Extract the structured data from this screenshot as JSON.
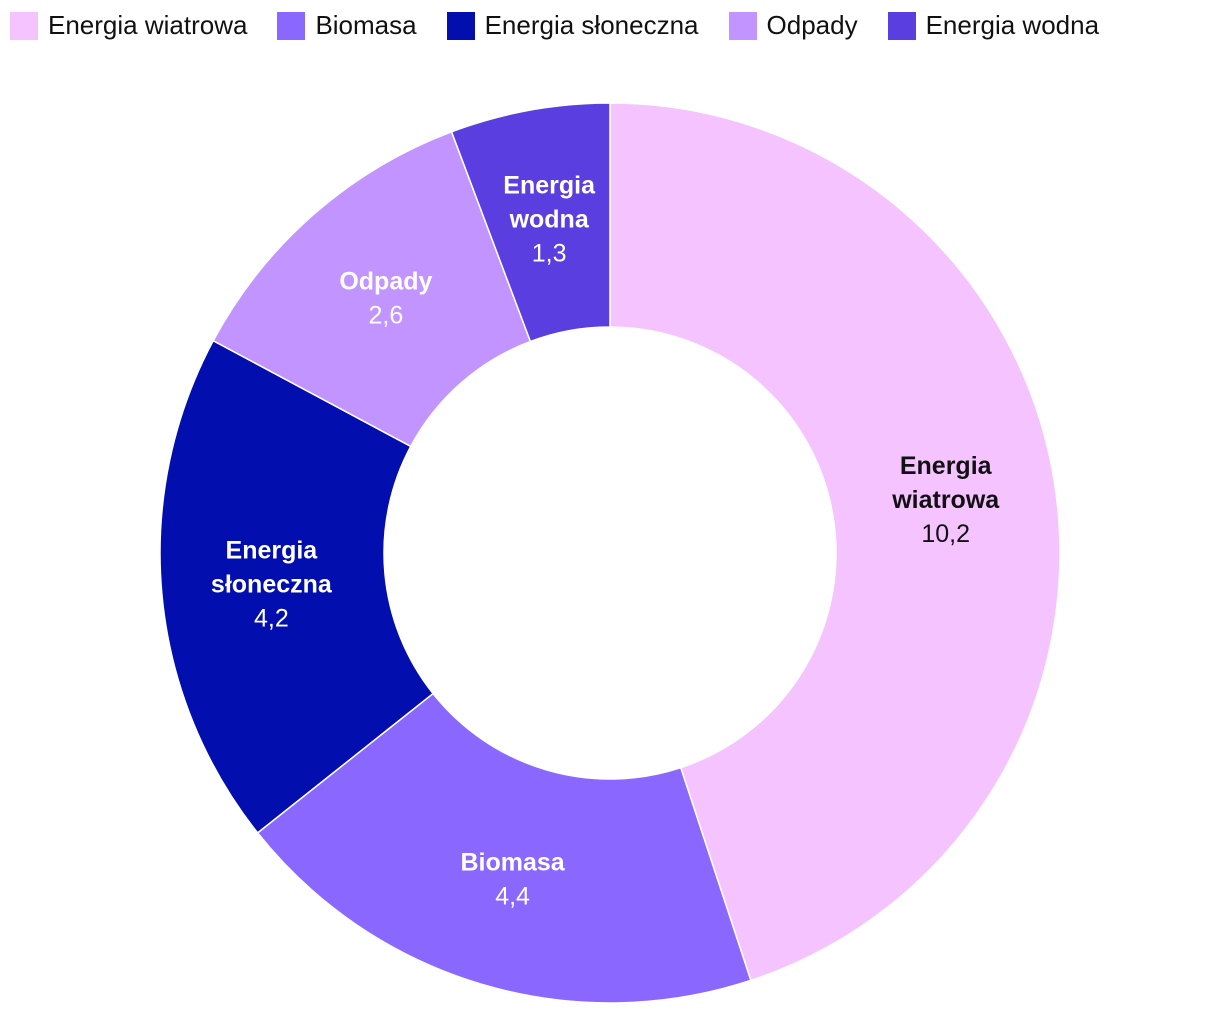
{
  "chart_data": {
    "type": "pie",
    "donut": true,
    "legend_position": "top-left",
    "categories": [
      "Energia wiatrowa",
      "Biomasa",
      "Energia słoneczna",
      "Odpady",
      "Energia wodna"
    ],
    "label_lines": [
      [
        "Energia",
        "wiatrowa"
      ],
      [
        "Biomasa"
      ],
      [
        "Energia",
        "słoneczna"
      ],
      [
        "Odpady"
      ],
      [
        "Energia",
        "wodna"
      ]
    ],
    "values": [
      10.2,
      4.4,
      4.2,
      2.6,
      1.3
    ],
    "value_labels": [
      "10,2",
      "4,4",
      "4,2",
      "2,6",
      "1,3"
    ],
    "colors": [
      "#f5c3ff",
      "#8a68ff",
      "#020fae",
      "#c194ff",
      "#5a3ee0"
    ],
    "label_colors": [
      "#111111",
      "#ffffff",
      "#ffffff",
      "#ffffff",
      "#ffffff"
    ]
  }
}
